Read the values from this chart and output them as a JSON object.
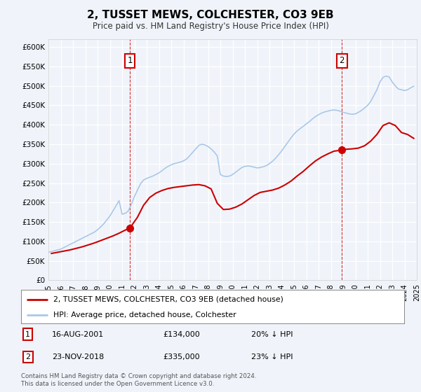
{
  "title": "2, TUSSET MEWS, COLCHESTER, CO3 9EB",
  "subtitle": "Price paid vs. HM Land Registry's House Price Index (HPI)",
  "ylim": [
    0,
    620000
  ],
  "xlim_start": 1995,
  "xlim_end": 2025,
  "yticks": [
    0,
    50000,
    100000,
    150000,
    200000,
    250000,
    300000,
    350000,
    400000,
    450000,
    500000,
    550000,
    600000
  ],
  "ytick_labels": [
    "£0",
    "£50K",
    "£100K",
    "£150K",
    "£200K",
    "£250K",
    "£300K",
    "£350K",
    "£400K",
    "£450K",
    "£500K",
    "£550K",
    "£600K"
  ],
  "xticks": [
    1995,
    1996,
    1997,
    1998,
    1999,
    2000,
    2001,
    2002,
    2003,
    2004,
    2005,
    2006,
    2007,
    2008,
    2009,
    2010,
    2011,
    2012,
    2013,
    2014,
    2015,
    2016,
    2017,
    2018,
    2019,
    2020,
    2021,
    2022,
    2023,
    2024,
    2025
  ],
  "background_color": "#f0f4fa",
  "grid_color": "#ffffff",
  "hpi_color": "#aac8e8",
  "price_color": "#cc0000",
  "annotation_box_color": "#cc0000",
  "legend_label_price": "2, TUSSET MEWS, COLCHESTER, CO3 9EB (detached house)",
  "legend_label_hpi": "HPI: Average price, detached house, Colchester",
  "note1_label": "1",
  "note1_date": "16-AUG-2001",
  "note1_price": "£134,000",
  "note1_pct": "20% ↓ HPI",
  "note2_label": "2",
  "note2_date": "23-NOV-2018",
  "note2_price": "£335,000",
  "note2_pct": "23% ↓ HPI",
  "footnote": "Contains HM Land Registry data © Crown copyright and database right 2024.\nThis data is licensed under the Open Government Licence v3.0.",
  "sale1_x": 2001.625,
  "sale1_y": 134000,
  "sale2_x": 2018.9,
  "sale2_y": 335000,
  "hpi_x": [
    1995.0,
    1995.25,
    1995.5,
    1995.75,
    1996.0,
    1996.25,
    1996.5,
    1996.75,
    1997.0,
    1997.25,
    1997.5,
    1997.75,
    1998.0,
    1998.25,
    1998.5,
    1998.75,
    1999.0,
    1999.25,
    1999.5,
    1999.75,
    2000.0,
    2000.25,
    2000.5,
    2000.75,
    2001.0,
    2001.25,
    2001.5,
    2001.75,
    2002.0,
    2002.25,
    2002.5,
    2002.75,
    2003.0,
    2003.25,
    2003.5,
    2003.75,
    2004.0,
    2004.25,
    2004.5,
    2004.75,
    2005.0,
    2005.25,
    2005.5,
    2005.75,
    2006.0,
    2006.25,
    2006.5,
    2006.75,
    2007.0,
    2007.25,
    2007.5,
    2007.75,
    2008.0,
    2008.25,
    2008.5,
    2008.75,
    2009.0,
    2009.25,
    2009.5,
    2009.75,
    2010.0,
    2010.25,
    2010.5,
    2010.75,
    2011.0,
    2011.25,
    2011.5,
    2011.75,
    2012.0,
    2012.25,
    2012.5,
    2012.75,
    2013.0,
    2013.25,
    2013.5,
    2013.75,
    2014.0,
    2014.25,
    2014.5,
    2014.75,
    2015.0,
    2015.25,
    2015.5,
    2015.75,
    2016.0,
    2016.25,
    2016.5,
    2016.75,
    2017.0,
    2017.25,
    2017.5,
    2017.75,
    2018.0,
    2018.25,
    2018.5,
    2018.75,
    2019.0,
    2019.25,
    2019.5,
    2019.75,
    2020.0,
    2020.25,
    2020.5,
    2020.75,
    2021.0,
    2021.25,
    2021.5,
    2021.75,
    2022.0,
    2022.25,
    2022.5,
    2022.75,
    2023.0,
    2023.25,
    2023.5,
    2023.75,
    2024.0,
    2024.25,
    2024.5,
    2024.75
  ],
  "hpi_y": [
    72000,
    74000,
    76000,
    78000,
    80000,
    84000,
    88000,
    92000,
    96000,
    100000,
    104000,
    108000,
    112000,
    116000,
    120000,
    124000,
    130000,
    137000,
    145000,
    155000,
    165000,
    178000,
    191000,
    205000,
    170000,
    172000,
    178000,
    195000,
    215000,
    232000,
    248000,
    258000,
    262000,
    265000,
    268000,
    272000,
    276000,
    282000,
    288000,
    293000,
    297000,
    300000,
    302000,
    304000,
    307000,
    312000,
    320000,
    329000,
    338000,
    347000,
    350000,
    348000,
    344000,
    338000,
    330000,
    320000,
    272000,
    268000,
    267000,
    268000,
    272000,
    278000,
    284000,
    290000,
    293000,
    294000,
    293000,
    291000,
    289000,
    290000,
    292000,
    295000,
    300000,
    306000,
    314000,
    323000,
    333000,
    344000,
    355000,
    366000,
    376000,
    384000,
    390000,
    396000,
    402000,
    408000,
    415000,
    421000,
    426000,
    430000,
    433000,
    435000,
    437000,
    438000,
    437000,
    435000,
    432000,
    430000,
    428000,
    427000,
    428000,
    432000,
    437000,
    443000,
    450000,
    460000,
    475000,
    490000,
    510000,
    522000,
    525000,
    523000,
    510000,
    500000,
    492000,
    490000,
    488000,
    490000,
    495000,
    499000
  ],
  "price_x": [
    1995.25,
    1995.75,
    1996.25,
    1996.75,
    1997.25,
    1997.75,
    1998.25,
    1998.75,
    1999.25,
    1999.75,
    2000.25,
    2000.75,
    2001.25,
    2001.625,
    2002.25,
    2002.75,
    2003.25,
    2003.75,
    2004.25,
    2004.75,
    2005.25,
    2005.75,
    2006.25,
    2006.75,
    2007.25,
    2007.75,
    2008.25,
    2008.75,
    2009.25,
    2009.75,
    2010.25,
    2010.75,
    2011.25,
    2011.75,
    2012.25,
    2012.75,
    2013.25,
    2013.75,
    2014.25,
    2014.75,
    2015.25,
    2015.75,
    2016.25,
    2016.75,
    2017.25,
    2017.75,
    2018.25,
    2018.9,
    2019.25,
    2019.75,
    2020.25,
    2020.75,
    2021.25,
    2021.75,
    2022.25,
    2022.75,
    2023.25,
    2023.75,
    2024.25,
    2024.75
  ],
  "price_y": [
    69000,
    72000,
    75000,
    78000,
    82000,
    86000,
    91000,
    96000,
    102000,
    108000,
    114000,
    121000,
    129000,
    134000,
    162000,
    193000,
    213000,
    224000,
    231000,
    236000,
    239000,
    241000,
    243000,
    245000,
    246000,
    243000,
    235000,
    198000,
    182000,
    183000,
    188000,
    196000,
    207000,
    218000,
    226000,
    229000,
    232000,
    237000,
    245000,
    255000,
    268000,
    280000,
    294000,
    307000,
    317000,
    325000,
    332000,
    335000,
    337000,
    338000,
    340000,
    346000,
    358000,
    375000,
    398000,
    405000,
    398000,
    380000,
    375000,
    365000
  ]
}
